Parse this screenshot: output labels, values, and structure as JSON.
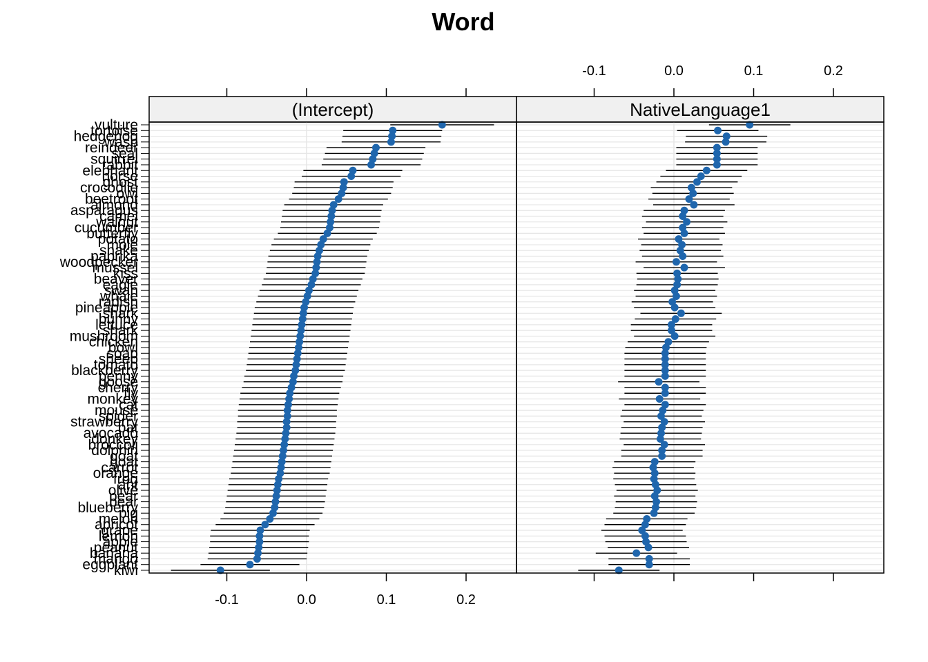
{
  "chart_data": {
    "type": "dotplot",
    "title": "Word",
    "panels": [
      {
        "name": "(Intercept)",
        "xlim": [
          -0.2,
          0.26
        ],
        "ticks": [
          -0.1,
          0.0,
          0.1,
          0.2
        ],
        "tick_labels": [
          "-0.1",
          "0.0",
          "0.1",
          "0.2"
        ],
        "ticks_position": "bottom"
      },
      {
        "name": "NativeLanguage1",
        "xlim": [
          -0.2,
          0.26
        ],
        "ticks": [
          -0.1,
          0.0,
          0.1,
          0.2
        ],
        "tick_labels": [
          "-0.1",
          "0.0",
          "0.1",
          "0.2"
        ],
        "ticks_position": "top"
      }
    ],
    "grid": true,
    "colors": {
      "point": "#1f66ad",
      "errorbar": "#000000",
      "strip": "#f0f0f0",
      "gridline": "#e6e6e6",
      "zeroline": "#e6e6e6"
    },
    "words": [
      {
        "label": "vulture",
        "intercept": 0.17,
        "intercept_lo": 0.105,
        "intercept_hi": 0.235,
        "native": 0.095,
        "native_lo": 0.044,
        "native_hi": 0.146
      },
      {
        "label": "tortoise",
        "intercept": 0.108,
        "intercept_lo": 0.046,
        "intercept_hi": 0.17,
        "native": 0.055,
        "native_lo": 0.004,
        "native_hi": 0.106
      },
      {
        "label": "hedgehog",
        "intercept": 0.107,
        "intercept_lo": 0.045,
        "intercept_hi": 0.169,
        "native": 0.066,
        "native_lo": 0.015,
        "native_hi": 0.117
      },
      {
        "label": "wasp",
        "intercept": 0.106,
        "intercept_lo": 0.044,
        "intercept_hi": 0.168,
        "native": 0.065,
        "native_lo": 0.014,
        "native_hi": 0.116
      },
      {
        "label": "reindeer",
        "intercept": 0.087,
        "intercept_lo": 0.025,
        "intercept_hi": 0.149,
        "native": 0.054,
        "native_lo": 0.003,
        "native_hi": 0.105
      },
      {
        "label": "seal",
        "intercept": 0.085,
        "intercept_lo": 0.023,
        "intercept_hi": 0.147,
        "native": 0.054,
        "native_lo": 0.003,
        "native_hi": 0.105
      },
      {
        "label": "squirrel",
        "intercept": 0.083,
        "intercept_lo": 0.021,
        "intercept_hi": 0.145,
        "native": 0.054,
        "native_lo": 0.003,
        "native_hi": 0.105
      },
      {
        "label": "rabbit",
        "intercept": 0.081,
        "intercept_lo": 0.019,
        "intercept_hi": 0.143,
        "native": 0.054,
        "native_lo": 0.003,
        "native_hi": 0.105
      },
      {
        "label": "elephant",
        "intercept": 0.058,
        "intercept_lo": -0.004,
        "intercept_hi": 0.12,
        "native": 0.041,
        "native_lo": -0.01,
        "native_hi": 0.092
      },
      {
        "label": "horse",
        "intercept": 0.056,
        "intercept_lo": -0.006,
        "intercept_hi": 0.118,
        "native": 0.034,
        "native_lo": -0.017,
        "native_hi": 0.085
      },
      {
        "label": "ghost",
        "intercept": 0.047,
        "intercept_lo": -0.015,
        "intercept_hi": 0.109,
        "native": 0.029,
        "native_lo": -0.022,
        "native_hi": 0.08
      },
      {
        "label": "crocodile",
        "intercept": 0.046,
        "intercept_lo": -0.016,
        "intercept_hi": 0.108,
        "native": 0.022,
        "native_lo": -0.029,
        "native_hi": 0.073
      },
      {
        "label": "owl",
        "intercept": 0.044,
        "intercept_lo": -0.018,
        "intercept_hi": 0.106,
        "native": 0.024,
        "native_lo": -0.027,
        "native_hi": 0.075
      },
      {
        "label": "beetroot",
        "intercept": 0.04,
        "intercept_lo": -0.022,
        "intercept_hi": 0.102,
        "native": 0.019,
        "native_lo": -0.032,
        "native_hi": 0.07
      },
      {
        "label": "almond",
        "intercept": 0.034,
        "intercept_lo": -0.028,
        "intercept_hi": 0.096,
        "native": 0.025,
        "native_lo": -0.026,
        "native_hi": 0.076
      },
      {
        "label": "asparagus",
        "intercept": 0.032,
        "intercept_lo": -0.03,
        "intercept_hi": 0.094,
        "native": 0.013,
        "native_lo": -0.038,
        "native_hi": 0.064
      },
      {
        "label": "camel",
        "intercept": 0.031,
        "intercept_lo": -0.031,
        "intercept_hi": 0.093,
        "native": 0.011,
        "native_lo": -0.04,
        "native_hi": 0.062
      },
      {
        "label": "walnut",
        "intercept": 0.03,
        "intercept_lo": -0.032,
        "intercept_hi": 0.092,
        "native": 0.016,
        "native_lo": -0.035,
        "native_hi": 0.067
      },
      {
        "label": "cucumber",
        "intercept": 0.029,
        "intercept_lo": -0.033,
        "intercept_hi": 0.091,
        "native": 0.011,
        "native_lo": -0.04,
        "native_hi": 0.062
      },
      {
        "label": "butterfly",
        "intercept": 0.026,
        "intercept_lo": -0.036,
        "intercept_hi": 0.088,
        "native": 0.013,
        "native_lo": -0.038,
        "native_hi": 0.064
      },
      {
        "label": "potato",
        "intercept": 0.021,
        "intercept_lo": -0.041,
        "intercept_hi": 0.083,
        "native": 0.006,
        "native_lo": -0.045,
        "native_hi": 0.057
      },
      {
        "label": "mole",
        "intercept": 0.018,
        "intercept_lo": -0.044,
        "intercept_hi": 0.08,
        "native": 0.01,
        "native_lo": -0.041,
        "native_hi": 0.061
      },
      {
        "label": "snake",
        "intercept": 0.016,
        "intercept_lo": -0.046,
        "intercept_hi": 0.078,
        "native": 0.008,
        "native_lo": -0.043,
        "native_hi": 0.059
      },
      {
        "label": "paprika",
        "intercept": 0.014,
        "intercept_lo": -0.048,
        "intercept_hi": 0.076,
        "native": 0.011,
        "native_lo": -0.04,
        "native_hi": 0.062
      },
      {
        "label": "woodpecker",
        "intercept": 0.013,
        "intercept_lo": -0.049,
        "intercept_hi": 0.075,
        "native": 0.003,
        "native_lo": -0.048,
        "native_hi": 0.054
      },
      {
        "label": "mussel",
        "intercept": 0.012,
        "intercept_lo": -0.05,
        "intercept_hi": 0.074,
        "native": 0.013,
        "native_lo": -0.038,
        "native_hi": 0.064
      },
      {
        "label": "kiss",
        "intercept": 0.011,
        "intercept_lo": -0.051,
        "intercept_hi": 0.073,
        "native": 0.004,
        "native_lo": -0.047,
        "native_hi": 0.055
      },
      {
        "label": "beaver",
        "intercept": 0.008,
        "intercept_lo": -0.054,
        "intercept_hi": 0.07,
        "native": 0.005,
        "native_lo": -0.046,
        "native_hi": 0.056
      },
      {
        "label": "eagle",
        "intercept": 0.006,
        "intercept_lo": -0.056,
        "intercept_hi": 0.068,
        "native": 0.004,
        "native_lo": -0.047,
        "native_hi": 0.055
      },
      {
        "label": "swan",
        "intercept": 0.003,
        "intercept_lo": -0.059,
        "intercept_hi": 0.065,
        "native": 0.001,
        "native_lo": -0.05,
        "native_hi": 0.052
      },
      {
        "label": "whale",
        "intercept": 0.001,
        "intercept_lo": -0.061,
        "intercept_hi": 0.063,
        "native": 0.003,
        "native_lo": -0.048,
        "native_hi": 0.054
      },
      {
        "label": "radish",
        "intercept": -0.001,
        "intercept_lo": -0.063,
        "intercept_hi": 0.061,
        "native": -0.002,
        "native_lo": -0.053,
        "native_hi": 0.049
      },
      {
        "label": "pineapple",
        "intercept": -0.003,
        "intercept_lo": -0.065,
        "intercept_hi": 0.059,
        "native": 0.001,
        "native_lo": -0.05,
        "native_hi": 0.052
      },
      {
        "label": "shark",
        "intercept": -0.004,
        "intercept_lo": -0.066,
        "intercept_hi": 0.058,
        "native": 0.009,
        "native_lo": -0.042,
        "native_hi": 0.06
      },
      {
        "label": "bunny",
        "intercept": -0.005,
        "intercept_lo": -0.067,
        "intercept_hi": 0.057,
        "native": 0.002,
        "native_lo": -0.049,
        "native_hi": 0.053
      },
      {
        "label": "lettuce",
        "intercept": -0.006,
        "intercept_lo": -0.068,
        "intercept_hi": 0.056,
        "native": -0.003,
        "native_lo": -0.054,
        "native_hi": 0.048
      },
      {
        "label": "shark",
        "intercept": -0.007,
        "intercept_lo": -0.069,
        "intercept_hi": 0.055,
        "native": -0.003,
        "native_lo": -0.054,
        "native_hi": 0.048
      },
      {
        "label": "mushroom",
        "intercept": -0.008,
        "intercept_lo": -0.07,
        "intercept_hi": 0.054,
        "native": 0.001,
        "native_lo": -0.05,
        "native_hi": 0.052
      },
      {
        "label": "chicken",
        "intercept": -0.009,
        "intercept_lo": -0.071,
        "intercept_hi": 0.053,
        "native": -0.007,
        "native_lo": -0.058,
        "native_hi": 0.044
      },
      {
        "label": "bowl",
        "intercept": -0.01,
        "intercept_lo": -0.072,
        "intercept_hi": 0.052,
        "native": -0.01,
        "native_lo": -0.061,
        "native_hi": 0.041
      },
      {
        "label": "soap",
        "intercept": -0.011,
        "intercept_lo": -0.073,
        "intercept_hi": 0.051,
        "native": -0.011,
        "native_lo": -0.062,
        "native_hi": 0.04
      },
      {
        "label": "sheep",
        "intercept": -0.012,
        "intercept_lo": -0.074,
        "intercept_hi": 0.05,
        "native": -0.011,
        "native_lo": -0.062,
        "native_hi": 0.04
      },
      {
        "label": "tomato",
        "intercept": -0.013,
        "intercept_lo": -0.075,
        "intercept_hi": 0.049,
        "native": -0.011,
        "native_lo": -0.062,
        "native_hi": 0.04
      },
      {
        "label": "blackberry",
        "intercept": -0.014,
        "intercept_lo": -0.076,
        "intercept_hi": 0.048,
        "native": -0.011,
        "native_lo": -0.062,
        "native_hi": 0.04
      },
      {
        "label": "penny",
        "intercept": -0.016,
        "intercept_lo": -0.078,
        "intercept_hi": 0.046,
        "native": -0.011,
        "native_lo": -0.062,
        "native_hi": 0.04
      },
      {
        "label": "goose",
        "intercept": -0.017,
        "intercept_lo": -0.079,
        "intercept_hi": 0.045,
        "native": -0.019,
        "native_lo": -0.07,
        "native_hi": 0.032
      },
      {
        "label": "cherry",
        "intercept": -0.019,
        "intercept_lo": -0.081,
        "intercept_hi": 0.043,
        "native": -0.011,
        "native_lo": -0.062,
        "native_hi": 0.04
      },
      {
        "label": "fly",
        "intercept": -0.021,
        "intercept_lo": -0.083,
        "intercept_hi": 0.041,
        "native": -0.011,
        "native_lo": -0.062,
        "native_hi": 0.04
      },
      {
        "label": "monkey",
        "intercept": -0.022,
        "intercept_lo": -0.084,
        "intercept_hi": 0.04,
        "native": -0.018,
        "native_lo": -0.069,
        "native_hi": 0.033
      },
      {
        "label": "cat",
        "intercept": -0.023,
        "intercept_lo": -0.085,
        "intercept_hi": 0.039,
        "native": -0.011,
        "native_lo": -0.062,
        "native_hi": 0.04
      },
      {
        "label": "mouse",
        "intercept": -0.024,
        "intercept_lo": -0.086,
        "intercept_hi": 0.038,
        "native": -0.014,
        "native_lo": -0.065,
        "native_hi": 0.037
      },
      {
        "label": "spider",
        "intercept": -0.024,
        "intercept_lo": -0.086,
        "intercept_hi": 0.038,
        "native": -0.016,
        "native_lo": -0.067,
        "native_hi": 0.035
      },
      {
        "label": "strawberry",
        "intercept": -0.025,
        "intercept_lo": -0.087,
        "intercept_hi": 0.037,
        "native": -0.012,
        "native_lo": -0.063,
        "native_hi": 0.039
      },
      {
        "label": "bat",
        "intercept": -0.025,
        "intercept_lo": -0.087,
        "intercept_hi": 0.037,
        "native": -0.015,
        "native_lo": -0.066,
        "native_hi": 0.036
      },
      {
        "label": "avocado",
        "intercept": -0.026,
        "intercept_lo": -0.088,
        "intercept_hi": 0.036,
        "native": -0.016,
        "native_lo": -0.067,
        "native_hi": 0.035
      },
      {
        "label": "donkey",
        "intercept": -0.027,
        "intercept_lo": -0.089,
        "intercept_hi": 0.035,
        "native": -0.017,
        "native_lo": -0.068,
        "native_hi": 0.034
      },
      {
        "label": "broccoli",
        "intercept": -0.028,
        "intercept_lo": -0.09,
        "intercept_hi": 0.034,
        "native": -0.012,
        "native_lo": -0.063,
        "native_hi": 0.039
      },
      {
        "label": "dolphin",
        "intercept": -0.029,
        "intercept_lo": -0.091,
        "intercept_hi": 0.033,
        "native": -0.015,
        "native_lo": -0.066,
        "native_hi": 0.036
      },
      {
        "label": "goat",
        "intercept": -0.03,
        "intercept_lo": -0.092,
        "intercept_hi": 0.032,
        "native": -0.015,
        "native_lo": -0.066,
        "native_hi": 0.036
      },
      {
        "label": "goat",
        "intercept": -0.031,
        "intercept_lo": -0.093,
        "intercept_hi": 0.031,
        "native": -0.024,
        "native_lo": -0.075,
        "native_hi": 0.027
      },
      {
        "label": "carrot",
        "intercept": -0.032,
        "intercept_lo": -0.094,
        "intercept_hi": 0.03,
        "native": -0.026,
        "native_lo": -0.077,
        "native_hi": 0.025
      },
      {
        "label": "orange",
        "intercept": -0.033,
        "intercept_lo": -0.095,
        "intercept_hi": 0.029,
        "native": -0.024,
        "native_lo": -0.075,
        "native_hi": 0.027
      },
      {
        "label": "frog",
        "intercept": -0.035,
        "intercept_lo": -0.097,
        "intercept_hi": 0.027,
        "native": -0.025,
        "native_lo": -0.076,
        "native_hi": 0.026
      },
      {
        "label": "ant",
        "intercept": -0.036,
        "intercept_lo": -0.098,
        "intercept_hi": 0.026,
        "native": -0.023,
        "native_lo": -0.074,
        "native_hi": 0.028
      },
      {
        "label": "olive",
        "intercept": -0.037,
        "intercept_lo": -0.099,
        "intercept_hi": 0.025,
        "native": -0.021,
        "native_lo": -0.072,
        "native_hi": 0.03
      },
      {
        "label": "pear",
        "intercept": -0.038,
        "intercept_lo": -0.1,
        "intercept_hi": 0.024,
        "native": -0.024,
        "native_lo": -0.075,
        "native_hi": 0.027
      },
      {
        "label": "bear",
        "intercept": -0.039,
        "intercept_lo": -0.101,
        "intercept_hi": 0.023,
        "native": -0.022,
        "native_lo": -0.073,
        "native_hi": 0.029
      },
      {
        "label": "blueberry",
        "intercept": -0.04,
        "intercept_lo": -0.102,
        "intercept_hi": 0.022,
        "native": -0.023,
        "native_lo": -0.074,
        "native_hi": 0.028
      },
      {
        "label": "pig",
        "intercept": -0.042,
        "intercept_lo": -0.104,
        "intercept_hi": 0.02,
        "native": -0.025,
        "native_lo": -0.076,
        "native_hi": 0.026
      },
      {
        "label": "melon",
        "intercept": -0.046,
        "intercept_lo": -0.108,
        "intercept_hi": 0.016,
        "native": -0.034,
        "native_lo": -0.085,
        "native_hi": 0.017
      },
      {
        "label": "apricot",
        "intercept": -0.052,
        "intercept_lo": -0.114,
        "intercept_hi": 0.01,
        "native": -0.036,
        "native_lo": -0.087,
        "native_hi": 0.015
      },
      {
        "label": "grape",
        "intercept": -0.058,
        "intercept_lo": -0.12,
        "intercept_hi": 0.004,
        "native": -0.04,
        "native_lo": -0.091,
        "native_hi": 0.011
      },
      {
        "label": "lemon",
        "intercept": -0.059,
        "intercept_lo": -0.121,
        "intercept_hi": 0.003,
        "native": -0.036,
        "native_lo": -0.087,
        "native_hi": 0.015
      },
      {
        "label": "apple",
        "intercept": -0.059,
        "intercept_lo": -0.121,
        "intercept_hi": 0.003,
        "native": -0.035,
        "native_lo": -0.086,
        "native_hi": 0.016
      },
      {
        "label": "peanut",
        "intercept": -0.06,
        "intercept_lo": -0.122,
        "intercept_hi": 0.002,
        "native": -0.032,
        "native_lo": -0.083,
        "native_hi": 0.019
      },
      {
        "label": "banana",
        "intercept": -0.061,
        "intercept_lo": -0.123,
        "intercept_hi": 0.001,
        "native": -0.047,
        "native_lo": -0.098,
        "native_hi": 0.004
      },
      {
        "label": "mango",
        "intercept": -0.062,
        "intercept_lo": -0.124,
        "intercept_hi": 0.0,
        "native": -0.031,
        "native_lo": -0.082,
        "native_hi": 0.02
      },
      {
        "label": "eggplant",
        "intercept": -0.071,
        "intercept_lo": -0.133,
        "intercept_hi": -0.009,
        "native": -0.031,
        "native_lo": -0.082,
        "native_hi": 0.02
      },
      {
        "label": "kiwi",
        "intercept": -0.108,
        "intercept_lo": -0.17,
        "intercept_hi": -0.046,
        "native": -0.069,
        "native_lo": -0.12,
        "native_hi": -0.018
      }
    ]
  }
}
